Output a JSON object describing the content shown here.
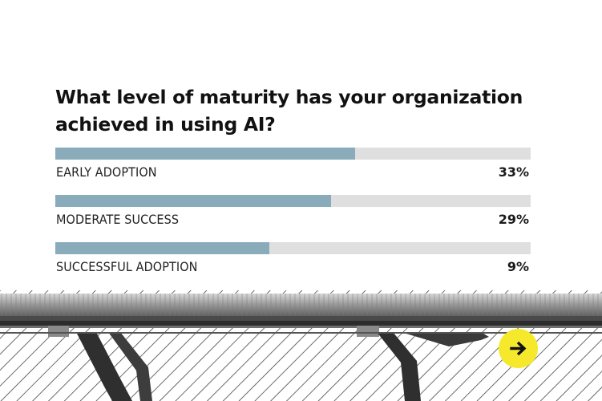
{
  "chart_data": {
    "type": "bar",
    "orientation": "horizontal",
    "title": "What level of maturity has your organization achieved in using AI?",
    "categories": [
      "EARLY ADOPTION",
      "MODERATE SUCCESS",
      "SUCCESSFUL ADOPTION"
    ],
    "values": [
      33,
      29,
      9
    ],
    "value_labels": [
      "33%",
      "29%",
      "9%"
    ],
    "bar_fill_fraction": [
      0.63,
      0.58,
      0.45
    ],
    "bar_color": "#8aabb9",
    "track_color": "#dfdfdf",
    "grid": false,
    "legend": "none"
  },
  "footer": {
    "next_icon": "arrow-right-icon",
    "next_color": "#f6e82b"
  }
}
